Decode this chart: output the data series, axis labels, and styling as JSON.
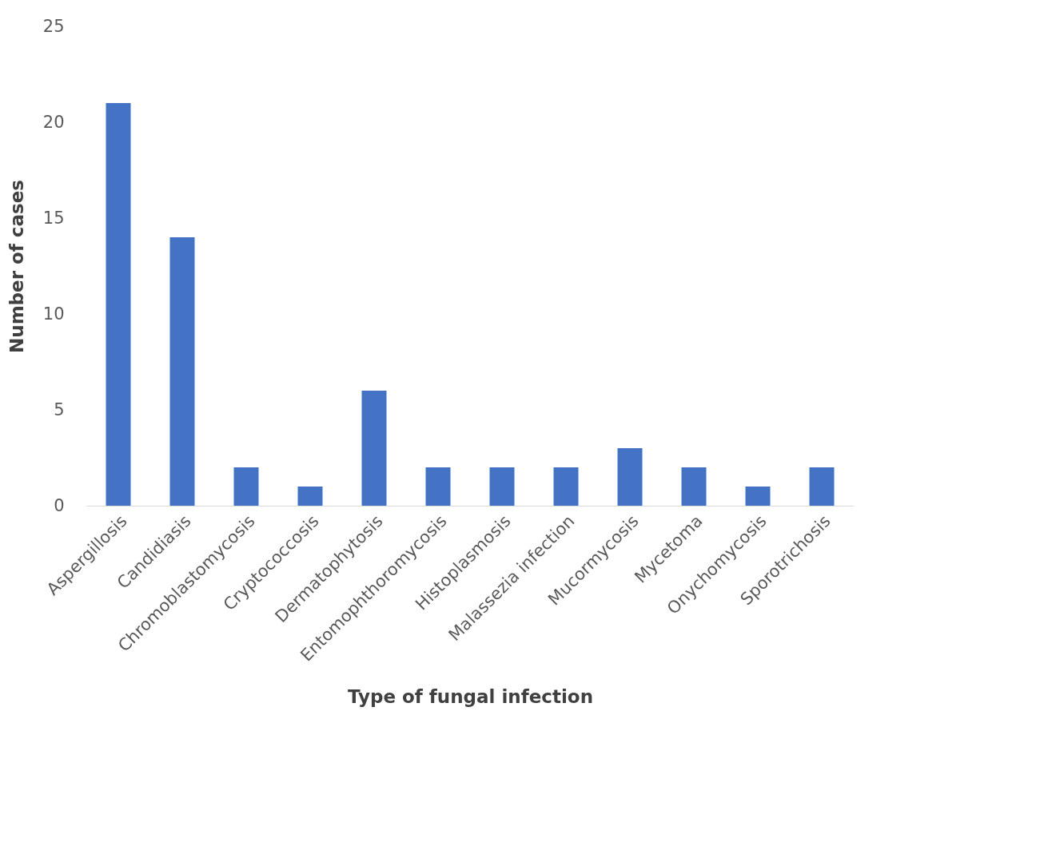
{
  "chart_data": {
    "type": "bar",
    "xlabel": "Type of fungal infection",
    "ylabel": "Number of cases",
    "categories": [
      "Aspergillosis",
      "Candidiasis",
      "Chromoblastomycosis",
      "Cryptococcosis",
      "Dermatophytosis",
      "Entomophthoromycosis",
      "Histoplasmosis",
      "Malassezia infection",
      "Mucormycosis",
      "Mycetoma",
      "Onychomycosis",
      "Sporotrichosis"
    ],
    "values": [
      21,
      14,
      2,
      1,
      6,
      2,
      2,
      2,
      3,
      2,
      1,
      2
    ],
    "color": "#4472c4",
    "ylim": [
      0,
      25
    ],
    "yticks": [
      0,
      5,
      10,
      15,
      20,
      25
    ],
    "grid": false
  }
}
